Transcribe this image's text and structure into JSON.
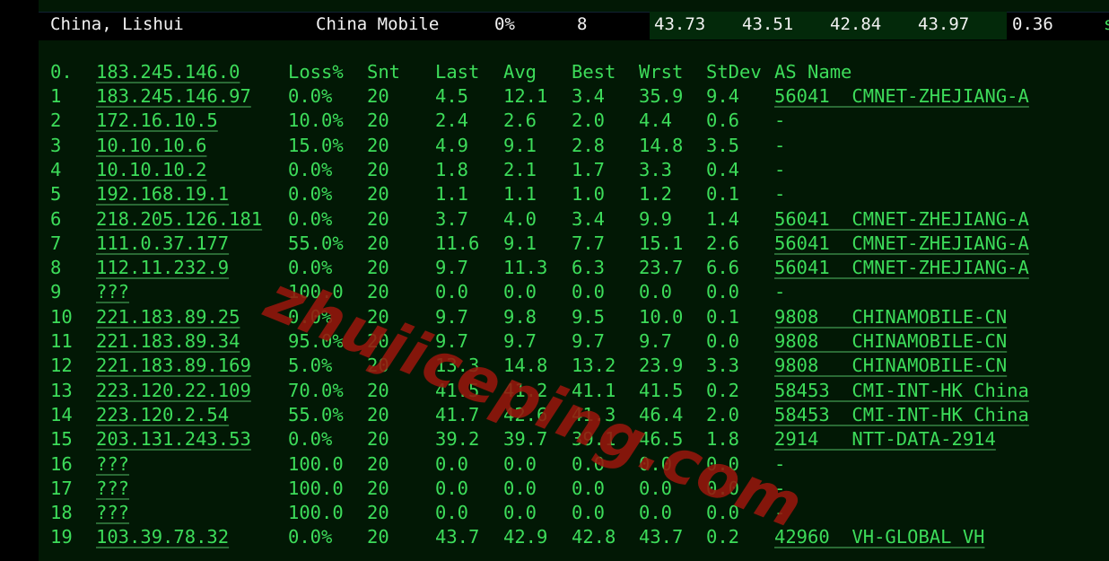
{
  "summary": {
    "location": "China, Lishui",
    "isp": "China Mobile",
    "loss": "0%",
    "count": "8",
    "last": "43.73",
    "avg": "43.51",
    "best": "42.84",
    "worst": "43.97",
    "stdev": "0.36",
    "trailing": "s"
  },
  "table": {
    "headers": [
      "0.",
      "183.245.146.0",
      "Loss%",
      "Snt",
      "Last",
      "Avg",
      "Best",
      "Wrst",
      "StDev",
      "AS Name"
    ],
    "rows": [
      [
        "1",
        "183.245.146.97",
        "0.0%",
        "20",
        "4.5",
        "12.1",
        "3.4",
        "35.9",
        "9.4",
        "56041  CMNET-ZHEJIANG-A"
      ],
      [
        "2",
        "172.16.10.5",
        "10.0%",
        "20",
        "2.4",
        "2.6",
        "2.0",
        "4.4",
        "0.6",
        "-"
      ],
      [
        "3",
        "10.10.10.6",
        "15.0%",
        "20",
        "4.9",
        "9.1",
        "2.8",
        "14.8",
        "3.5",
        "-"
      ],
      [
        "4",
        "10.10.10.2",
        "0.0%",
        "20",
        "1.8",
        "2.1",
        "1.7",
        "3.3",
        "0.4",
        "-"
      ],
      [
        "5",
        "192.168.19.1",
        "0.0%",
        "20",
        "1.1",
        "1.1",
        "1.0",
        "1.2",
        "0.1",
        "-"
      ],
      [
        "6",
        "218.205.126.181",
        "0.0%",
        "20",
        "3.7",
        "4.0",
        "3.4",
        "9.9",
        "1.4",
        "56041  CMNET-ZHEJIANG-A"
      ],
      [
        "7",
        "111.0.37.177",
        "55.0%",
        "20",
        "11.6",
        "9.1",
        "7.7",
        "15.1",
        "2.6",
        "56041  CMNET-ZHEJIANG-A"
      ],
      [
        "8",
        "112.11.232.9",
        "0.0%",
        "20",
        "9.7",
        "11.3",
        "6.3",
        "23.7",
        "6.6",
        "56041  CMNET-ZHEJIANG-A"
      ],
      [
        "9",
        "???",
        "100.0",
        "20",
        "0.0",
        "0.0",
        "0.0",
        "0.0",
        "0.0",
        "-"
      ],
      [
        "10",
        "221.183.89.25",
        "0.0%",
        "20",
        "9.7",
        "9.8",
        "9.5",
        "10.0",
        "0.1",
        "9808   CHINAMOBILE-CN"
      ],
      [
        "11",
        "221.183.89.34",
        "95.0%",
        "20",
        "9.7",
        "9.7",
        "9.7",
        "9.7",
        "0.0",
        "9808   CHINAMOBILE-CN"
      ],
      [
        "12",
        "221.183.89.169",
        "5.0%",
        "20",
        "13.3",
        "14.8",
        "13.2",
        "23.9",
        "3.3",
        "9808   CHINAMOBILE-CN"
      ],
      [
        "13",
        "223.120.22.109",
        "70.0%",
        "20",
        "41.5",
        "41.2",
        "41.1",
        "41.5",
        "0.2",
        "58453  CMI-INT-HK China"
      ],
      [
        "14",
        "223.120.2.54",
        "55.0%",
        "20",
        "41.7",
        "42.6",
        "41.3",
        "46.4",
        "2.0",
        "58453  CMI-INT-HK China"
      ],
      [
        "15",
        "203.131.243.53",
        "0.0%",
        "20",
        "39.2",
        "39.7",
        "39.1",
        "46.5",
        "1.8",
        "2914   NTT-DATA-2914"
      ],
      [
        "16",
        "???",
        "100.0",
        "20",
        "0.0",
        "0.0",
        "0.0",
        "0.0",
        "0.0",
        "-"
      ],
      [
        "17",
        "???",
        "100.0",
        "20",
        "0.0",
        "0.0",
        "0.0",
        "0.0",
        "0.0",
        "-"
      ],
      [
        "18",
        "???",
        "100.0",
        "20",
        "0.0",
        "0.0",
        "0.0",
        "0.0",
        "0.0",
        "-"
      ],
      [
        "19",
        "103.39.78.32",
        "0.0%",
        "20",
        "43.7",
        "42.9",
        "42.8",
        "43.7",
        "0.2",
        "42960  VH-GLOBAL VH"
      ]
    ]
  },
  "watermark": "zhujiceping.com"
}
